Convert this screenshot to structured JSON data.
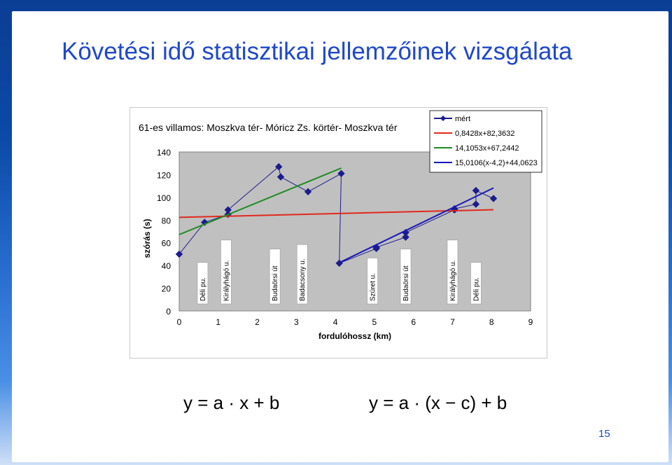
{
  "slide": {
    "title": "Követési idő statisztikai jellemzőinek vizsgálata",
    "formula1": "y = a · x + b",
    "formula2": "y = a · (x − c) + b",
    "page_number": "15"
  },
  "chart_data": {
    "type": "scatter",
    "title": "61-es villamos: Moszkva tér- Móricz Zs. körtér- Moszkva tér",
    "xlabel": "fordulóhossz (km)",
    "ylabel": "szórás (s)",
    "xlim": [
      0,
      9
    ],
    "ylim": [
      0,
      140
    ],
    "xticks": [
      0,
      1,
      2,
      3,
      4,
      5,
      6,
      7,
      8,
      9
    ],
    "yticks": [
      0,
      20,
      40,
      60,
      80,
      100,
      120,
      140
    ],
    "grid": false,
    "plot_background": "#c0c0c0",
    "legend_position": "top-right",
    "series": [
      {
        "name": "mért",
        "color": "#1c1c8c",
        "marker": "diamond",
        "x": [
          0.0,
          0.65,
          1.25,
          1.25,
          2.55,
          2.6,
          3.3,
          4.15,
          4.1,
          5.05,
          5.05,
          5.8,
          5.8,
          7.05,
          7.05,
          7.6,
          7.6,
          8.05
        ],
        "y": [
          50,
          78,
          85,
          89,
          127,
          118,
          105,
          121,
          42,
          55,
          56,
          65,
          69,
          89,
          90,
          94,
          106,
          99
        ]
      },
      {
        "name": "0,8428x+82,3632",
        "color": "#e0291c",
        "marker": "none",
        "x": [
          0,
          8.05
        ],
        "y": [
          82.4,
          89.1
        ]
      },
      {
        "name": "14,1053x+67,2442",
        "color": "#1e8a22",
        "marker": "none",
        "x": [
          0,
          4.15
        ],
        "y": [
          67.2,
          125.8
        ]
      },
      {
        "name": "15,0106(x-4,2)+44,0623",
        "color": "#1818b8",
        "marker": "none",
        "x": [
          4.15,
          8.05
        ],
        "y": [
          43.3,
          108.3
        ]
      }
    ],
    "annotations": [
      {
        "text": "Déli pu.",
        "x": 0.6
      },
      {
        "text": "Királyhágó u.",
        "x": 1.2
      },
      {
        "text": "Budaörsi út",
        "x": 2.45
      },
      {
        "text": "Badacsony u.",
        "x": 3.15
      },
      {
        "text": "Szüret u.",
        "x": 4.95
      },
      {
        "text": "Budaörsi út",
        "x": 5.8
      },
      {
        "text": "Királyhágó u.",
        "x": 7.0
      },
      {
        "text": "Déli pu.",
        "x": 7.6
      }
    ]
  }
}
